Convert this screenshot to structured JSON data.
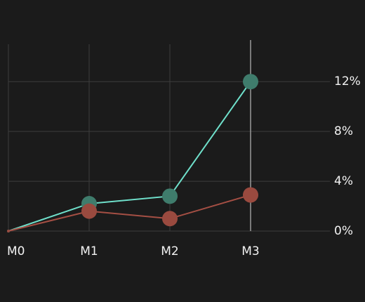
{
  "chart_data": {
    "type": "line",
    "categories": [
      "M0",
      "M1",
      "M2",
      "M3"
    ],
    "series": [
      {
        "color": "#6fe0cb",
        "marker_color": "#3f7c6c",
        "values": [
          0,
          2.2,
          2.8,
          12
        ]
      },
      {
        "color": "#a54f44",
        "marker_color": "#9a4a3f",
        "values": [
          0,
          1.6,
          1.0,
          2.9
        ]
      }
    ],
    "ylim": [
      0,
      15
    ],
    "yticks": [
      {
        "value": 0,
        "label": "0%"
      },
      {
        "value": 4,
        "label": "4%"
      },
      {
        "value": 8,
        "label": "8%"
      },
      {
        "value": 12,
        "label": "12%"
      }
    ],
    "grid": true,
    "highlight_index": 3
  }
}
